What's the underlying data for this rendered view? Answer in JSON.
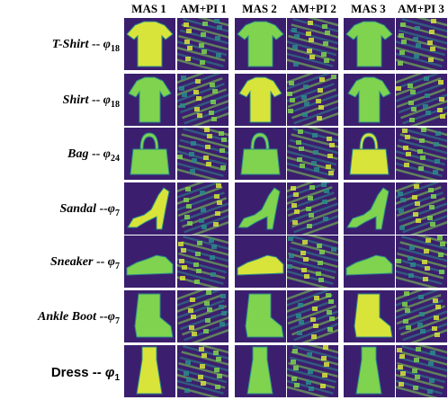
{
  "columns": [
    "MAS 1",
    "AM+PI 1",
    "MAS 2",
    "AM+PI 2",
    "MAS 3",
    "AM+PI 3"
  ],
  "rows": [
    {
      "name": "T-Shirt",
      "sep": " -- ",
      "phi": "φ",
      "sub": "18",
      "style": "italic",
      "icon": "tshirt-icon"
    },
    {
      "name": "Shirt",
      "sep": " -- ",
      "phi": "φ",
      "sub": "18",
      "style": "italic",
      "icon": "shirt-icon"
    },
    {
      "name": "Bag",
      "sep": " -- ",
      "phi": "φ",
      "sub": "24",
      "style": "italic",
      "icon": "bag-icon"
    },
    {
      "name": "Sandal",
      "sep": " --",
      "phi": "φ",
      "sub": "7",
      "style": "italic",
      "icon": "sandal-icon"
    },
    {
      "name": "Sneaker",
      "sep": " -- ",
      "phi": "φ",
      "sub": "7",
      "style": "italic",
      "icon": "sneaker-icon"
    },
    {
      "name": "Ankle Boot",
      "sep": " --",
      "phi": "φ",
      "sub": "7",
      "style": "italic",
      "icon": "boot-icon"
    },
    {
      "name": "Dress",
      "sep": " -- ",
      "phi": "φ",
      "sub": "1",
      "style": "plain",
      "icon": "dress-icon"
    }
  ],
  "colors": {
    "background": "#3b1f6e",
    "mid": "#2b8b8c",
    "bright": "#d8e43a",
    "light": "#7fd34e"
  }
}
